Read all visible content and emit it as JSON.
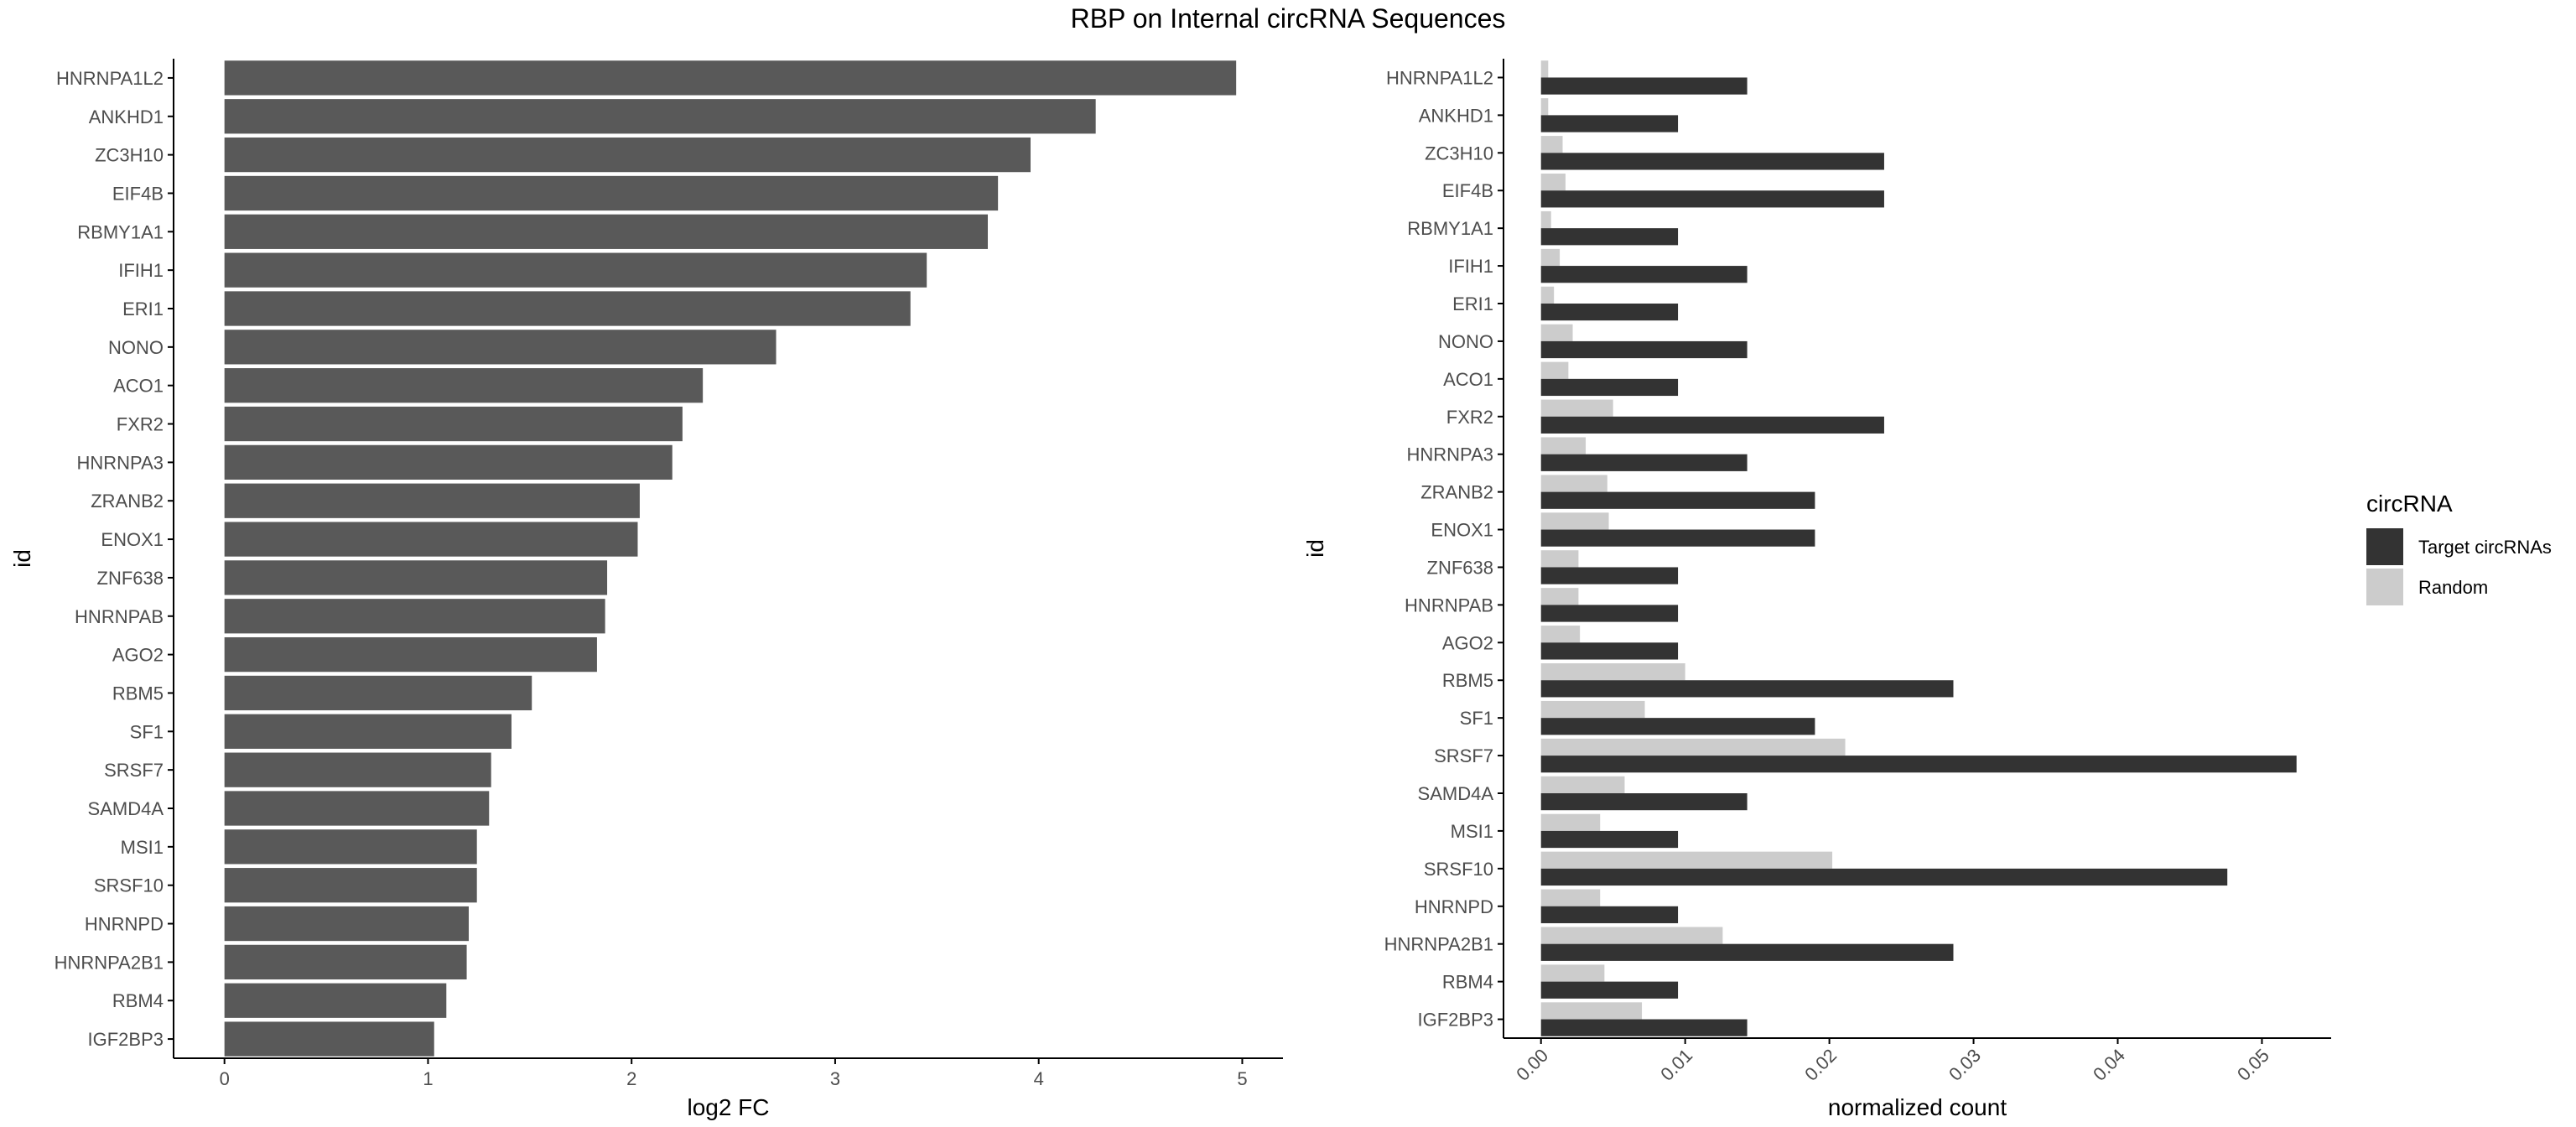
{
  "title": "RBP on Internal circRNA Sequences",
  "colors": {
    "bar_fc": "#595959",
    "target": "#333333",
    "random": "#cccccc",
    "axis": "#000000",
    "tick_text": "#4d4d4d"
  },
  "legend": {
    "title": "circRNA",
    "items": [
      {
        "label": "Target circRNAs",
        "color": "#333333"
      },
      {
        "label": "Random",
        "color": "#cccccc"
      }
    ],
    "placement": "right"
  },
  "chart_data": [
    {
      "type": "bar",
      "orientation": "horizontal",
      "categories": [
        "HNRNPA1L2",
        "ANKHD1",
        "ZC3H10",
        "EIF4B",
        "RBMY1A1",
        "IFIH1",
        "ERI1",
        "NONO",
        "ACO1",
        "FXR2",
        "HNRNPA3",
        "ZRANB2",
        "ENOX1",
        "ZNF638",
        "HNRNPAB",
        "AGO2",
        "RBM5",
        "SF1",
        "SRSF7",
        "SAMD4A",
        "MSI1",
        "SRSF10",
        "HNRNPD",
        "HNRNPA2B1",
        "RBM4",
        "IGF2BP3"
      ],
      "values": [
        4.97,
        4.28,
        3.96,
        3.8,
        3.75,
        3.45,
        3.37,
        2.71,
        2.35,
        2.25,
        2.2,
        2.04,
        2.03,
        1.88,
        1.87,
        1.83,
        1.51,
        1.41,
        1.31,
        1.3,
        1.24,
        1.24,
        1.2,
        1.19,
        1.09,
        1.03
      ],
      "xlabel": "log2 FC",
      "ylabel": "id",
      "xlim": [
        -0.25,
        5.2
      ],
      "xticks": [
        0,
        1,
        2,
        3,
        4,
        5
      ],
      "grid": false
    },
    {
      "type": "bar",
      "orientation": "horizontal",
      "grouped": true,
      "categories": [
        "HNRNPA1L2",
        "ANKHD1",
        "ZC3H10",
        "EIF4B",
        "RBMY1A1",
        "IFIH1",
        "ERI1",
        "NONO",
        "ACO1",
        "FXR2",
        "HNRNPA3",
        "ZRANB2",
        "ENOX1",
        "ZNF638",
        "HNRNPAB",
        "AGO2",
        "RBM5",
        "SF1",
        "SRSF7",
        "SAMD4A",
        "MSI1",
        "SRSF10",
        "HNRNPD",
        "HNRNPA2B1",
        "RBM4",
        "IGF2BP3"
      ],
      "series": [
        {
          "name": "Target circRNAs",
          "values": [
            0.0143,
            0.0095,
            0.0238,
            0.0238,
            0.0095,
            0.0143,
            0.0095,
            0.0143,
            0.0095,
            0.0238,
            0.0143,
            0.019,
            0.019,
            0.0095,
            0.0095,
            0.0095,
            0.0286,
            0.019,
            0.0524,
            0.0143,
            0.0095,
            0.0476,
            0.0095,
            0.0286,
            0.0095,
            0.0143
          ]
        },
        {
          "name": "Random",
          "values": [
            0.0005,
            0.0005,
            0.0015,
            0.0017,
            0.0007,
            0.0013,
            0.0009,
            0.0022,
            0.0019,
            0.005,
            0.0031,
            0.0046,
            0.0047,
            0.0026,
            0.0026,
            0.0027,
            0.01,
            0.0072,
            0.0211,
            0.0058,
            0.0041,
            0.0202,
            0.0041,
            0.0126,
            0.0044,
            0.007
          ]
        }
      ],
      "xlabel": "normalized count",
      "ylabel": "id",
      "xlim": [
        -0.0026,
        0.0548
      ],
      "xticks": [
        0.0,
        0.01,
        0.02,
        0.03,
        0.04,
        0.05
      ],
      "xtick_labels": [
        "0.00",
        "0.01",
        "0.02",
        "0.03",
        "0.04",
        "0.05"
      ],
      "xtick_rotation": 45,
      "grid": false
    }
  ]
}
